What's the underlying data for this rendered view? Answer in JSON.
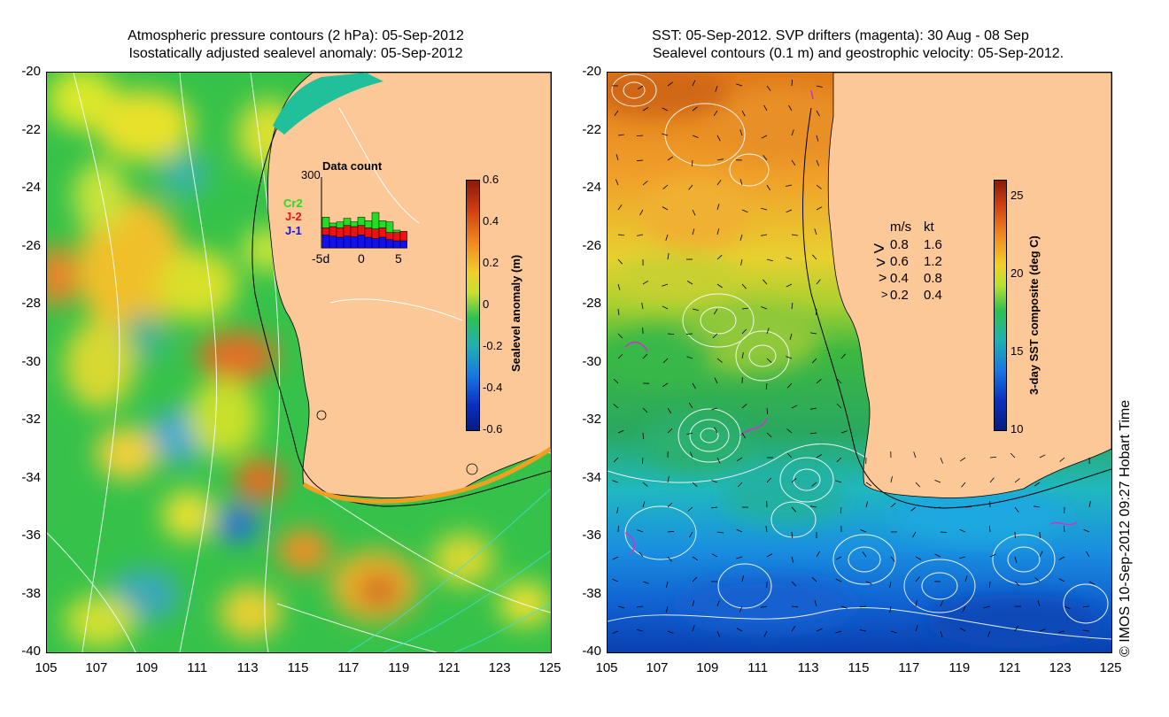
{
  "left_panel": {
    "title_line1": "Atmospheric pressure contours (2 hPa): 05-Sep-2012",
    "title_line2": "Isostatically adjusted sealevel anomaly: 05-Sep-2012",
    "colorbar": {
      "label": "Sealevel anomaly (m)",
      "ticks": [
        "0.6",
        "0.4",
        "0.2",
        "0",
        "-0.2",
        "-0.4",
        "-0.6"
      ],
      "range": [
        -0.6,
        0.6
      ]
    },
    "inset": {
      "title": "Data count",
      "ymax": "300",
      "x_ticks": [
        "-5d",
        "0",
        "5"
      ],
      "legend": [
        {
          "name": "Cr2",
          "color": "#22dd22"
        },
        {
          "name": "J-2",
          "color": "#ee1111"
        },
        {
          "name": "J-1",
          "color": "#1111ee"
        }
      ],
      "bars": [
        {
          "j1": 55,
          "j2": 85,
          "cr2": 130
        },
        {
          "j1": 50,
          "j2": 90,
          "cr2": 105
        },
        {
          "j1": 45,
          "j2": 85,
          "cr2": 110
        },
        {
          "j1": 50,
          "j2": 95,
          "cr2": 125
        },
        {
          "j1": 48,
          "j2": 90,
          "cr2": 110
        },
        {
          "j1": 55,
          "j2": 95,
          "cr2": 130
        },
        {
          "j1": 45,
          "j2": 85,
          "cr2": 115
        },
        {
          "j1": 40,
          "j2": 80,
          "cr2": 150
        },
        {
          "j1": 45,
          "j2": 85,
          "cr2": 115
        },
        {
          "j1": 35,
          "j2": 65,
          "cr2": 110
        },
        {
          "j1": 30,
          "j2": 65,
          "cr2": 75
        },
        {
          "j1": 30,
          "j2": 70,
          "cr2": 70
        }
      ]
    }
  },
  "right_panel": {
    "title_line1": "SST: 05-Sep-2012. SVP drifters (magenta): 30 Aug - 08 Sep",
    "title_line2": "Sealevel contours (0.1 m) and geostrophic velocity: 05-Sep-2012.",
    "colorbar": {
      "label": "3-day SST composite (deg C)",
      "ticks": [
        "25",
        "20",
        "15",
        "10"
      ],
      "range": [
        10,
        26
      ]
    },
    "velocity_legend": {
      "header_ms": "m/s",
      "header_kt": "kt",
      "rows": [
        {
          "ms": "0.8",
          "kt": "1.6"
        },
        {
          "ms": "0.6",
          "kt": "1.2"
        },
        {
          "ms": "0.4",
          "kt": "0.8"
        },
        {
          "ms": "0.2",
          "kt": "0.4"
        }
      ]
    }
  },
  "axes": {
    "lat_ticks": [
      "-20",
      "-22",
      "-24",
      "-26",
      "-28",
      "-30",
      "-32",
      "-34",
      "-36",
      "-38",
      "-40"
    ],
    "lon_ticks": [
      "105",
      "107",
      "109",
      "111",
      "113",
      "115",
      "117",
      "119",
      "121",
      "123",
      "125"
    ],
    "lat_range": [
      -40,
      -20
    ],
    "lon_range": [
      105,
      125
    ]
  },
  "credit": "© IMOS 10-Sep-2012 09:27 Hobart Time",
  "colors": {
    "land": "#fcc898",
    "contour": "#ffffff",
    "drifter": "#cc33cc"
  }
}
